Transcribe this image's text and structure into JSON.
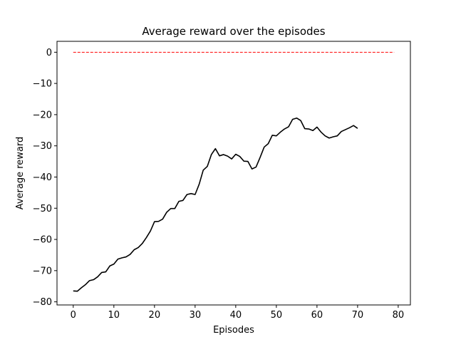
{
  "chart_data": {
    "type": "line",
    "title": "Average reward over the episodes",
    "xlabel": "Episodes",
    "ylabel": "Average reward",
    "xlim": [
      -4,
      83
    ],
    "ylim": [
      -81,
      3.5
    ],
    "xticks": [
      0,
      10,
      20,
      30,
      40,
      50,
      60,
      70,
      80
    ],
    "yticks": [
      0,
      -10,
      -20,
      -30,
      -40,
      -50,
      -60,
      -70,
      -80
    ],
    "xtick_labels": [
      "0",
      "10",
      "20",
      "30",
      "40",
      "50",
      "60",
      "70",
      "80"
    ],
    "ytick_labels": [
      "0",
      "−10",
      "−20",
      "−30",
      "−40",
      "−50",
      "−60",
      "−70",
      "−80"
    ],
    "grid": false,
    "series": [
      {
        "style": "solid",
        "color": "#000000",
        "x": [
          0,
          1,
          2,
          3,
          4,
          5,
          6,
          7,
          8,
          9,
          10,
          11,
          12,
          13,
          14,
          15,
          16,
          17,
          18,
          19,
          20,
          21,
          22,
          23,
          24,
          25,
          26,
          27,
          28,
          29,
          30,
          31,
          32,
          33,
          34,
          35,
          36,
          37,
          38,
          39,
          40,
          41,
          42,
          43,
          44,
          45,
          46,
          47,
          48,
          49,
          50,
          51,
          52,
          53,
          54,
          55,
          56,
          57,
          58,
          59,
          60,
          61,
          62,
          63,
          64,
          65,
          66,
          67,
          68,
          69,
          70
        ],
        "y": [
          -76.5,
          -76.6,
          -75.5,
          -74.5,
          -73.2,
          -72.9,
          -72.0,
          -70.6,
          -70.4,
          -68.5,
          -67.9,
          -66.3,
          -65.9,
          -65.6,
          -64.8,
          -63.3,
          -62.6,
          -61.3,
          -59.4,
          -57.3,
          -54.3,
          -54.2,
          -53.5,
          -51.3,
          -50.1,
          -50.1,
          -47.8,
          -47.5,
          -45.6,
          -45.3,
          -45.6,
          -42.3,
          -37.8,
          -36.6,
          -32.8,
          -30.9,
          -33.2,
          -32.8,
          -33.3,
          -34.2,
          -32.7,
          -33.4,
          -34.9,
          -35.0,
          -37.4,
          -36.8,
          -33.7,
          -30.4,
          -29.3,
          -26.6,
          -26.8,
          -25.6,
          -24.6,
          -23.9,
          -21.5,
          -21.1,
          -21.9,
          -24.5,
          -24.6,
          -25.1,
          -24.0,
          -25.6,
          -26.8,
          -27.5,
          -27.1,
          -26.8,
          -25.4,
          -24.8,
          -24.2,
          -23.5,
          -24.4
        ]
      },
      {
        "style": "dashed",
        "color": "#ff0000",
        "x": [
          0,
          79
        ],
        "y": [
          0,
          0
        ]
      }
    ]
  }
}
